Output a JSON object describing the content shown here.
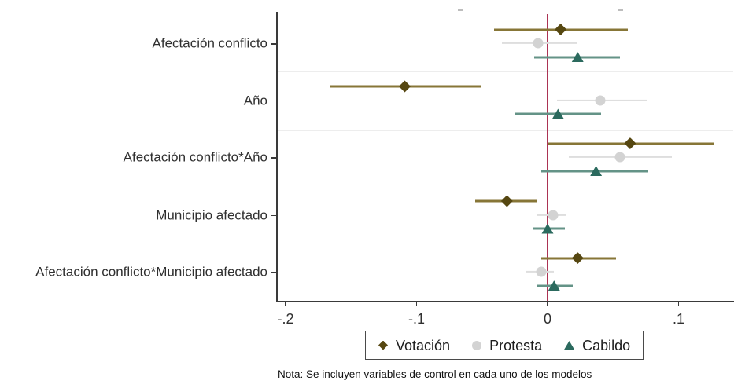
{
  "chart_data": {
    "type": "scatter",
    "subtype": "coefficient-plot-with-confidence-intervals",
    "title": "",
    "xlabel": "",
    "ylabel": "",
    "categories": [
      "Afectación conflicto",
      "Año",
      "Afectación conflicto*Año",
      "Municipio afectado",
      "Afectación conflicto*Municipio afectado"
    ],
    "series": [
      {
        "name": "Votación",
        "marker": "diamond",
        "marker_color": "#564711",
        "line_color": "#877637",
        "points": [
          {
            "est": 0.01,
            "lo": -0.041,
            "hi": 0.061
          },
          {
            "est": -0.109,
            "lo": -0.166,
            "hi": -0.051
          },
          {
            "est": 0.063,
            "lo": 0.0,
            "hi": 0.127
          },
          {
            "est": -0.031,
            "lo": -0.055,
            "hi": -0.008
          },
          {
            "est": 0.023,
            "lo": -0.005,
            "hi": 0.052
          }
        ]
      },
      {
        "name": "Protesta",
        "marker": "circle",
        "marker_color": "#d3d3d3",
        "line_color": "#dedede",
        "points": [
          {
            "est": -0.007,
            "lo": -0.035,
            "hi": 0.022
          },
          {
            "est": 0.04,
            "lo": 0.007,
            "hi": 0.076
          },
          {
            "est": 0.055,
            "lo": 0.016,
            "hi": 0.095
          },
          {
            "est": 0.004,
            "lo": -0.008,
            "hi": 0.014
          },
          {
            "est": -0.005,
            "lo": -0.016,
            "hi": 0.005
          }
        ]
      },
      {
        "name": "Cabildo",
        "marker": "triangle",
        "marker_color": "#2b6a5e",
        "line_color": "#649387",
        "points": [
          {
            "est": 0.023,
            "lo": -0.01,
            "hi": 0.055
          },
          {
            "est": 0.008,
            "lo": -0.025,
            "hi": 0.041
          },
          {
            "est": 0.037,
            "lo": -0.005,
            "hi": 0.077
          },
          {
            "est": 0.0,
            "lo": -0.011,
            "hi": 0.013
          },
          {
            "est": 0.005,
            "lo": -0.008,
            "hi": 0.019
          }
        ]
      }
    ],
    "x_axis": {
      "ticks": [
        -0.2,
        -0.1,
        0,
        0.1
      ],
      "tick_labels": [
        "-.2",
        "-.1",
        "0",
        ".1"
      ],
      "range": [
        -0.207,
        0.142
      ]
    },
    "zero_line": {
      "x": 0,
      "color": "#ab3354"
    },
    "grid": "faint horizontal separators between coefficient groups",
    "legend": {
      "position": "bottom-center",
      "entries": [
        "Votación",
        "Protesta",
        "Cabildo"
      ]
    },
    "note": "Nota: Se incluyen variables de control en cada uno de los modelos",
    "colors": {
      "axis": "#3a3a3a",
      "gridline": "#ededed",
      "zero_line": "#ab3354",
      "text": "#303030"
    }
  }
}
